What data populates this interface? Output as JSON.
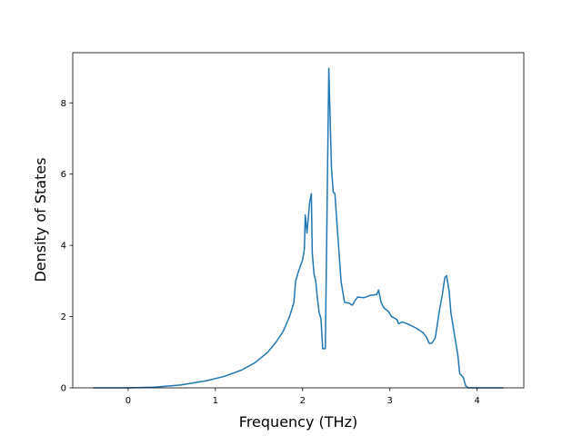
{
  "chart_data": {
    "type": "line",
    "xlabel": "Frequency (THz)",
    "ylabel": "Density of States",
    "color": "#1f77b4",
    "x": [
      -0.4,
      0,
      0.3,
      0.6,
      0.9,
      1.1,
      1.3,
      1.45,
      1.6,
      1.7,
      1.78,
      1.85,
      1.9,
      1.92,
      1.95,
      2.0,
      2.02,
      2.03,
      2.05,
      2.08,
      2.1,
      2.11,
      2.13,
      2.15,
      2.17,
      2.19,
      2.21,
      2.23,
      2.26,
      2.28,
      2.3,
      2.33,
      2.35,
      2.37,
      2.4,
      2.44,
      2.48,
      2.53,
      2.57,
      2.6,
      2.63,
      2.7,
      2.78,
      2.85,
      2.87,
      2.9,
      2.93,
      2.98,
      3.02,
      3.08,
      3.1,
      3.14,
      3.2,
      3.3,
      3.38,
      3.42,
      3.45,
      3.48,
      3.52,
      3.57,
      3.6,
      3.63,
      3.65,
      3.68,
      3.7,
      3.74,
      3.78,
      3.8,
      3.84,
      3.87,
      3.9,
      4.3
    ],
    "values": [
      0,
      0,
      0.02,
      0.08,
      0.2,
      0.32,
      0.5,
      0.7,
      1.0,
      1.3,
      1.6,
      2.0,
      2.4,
      3.0,
      3.25,
      3.6,
      3.9,
      4.85,
      4.35,
      5.2,
      5.45,
      3.8,
      3.2,
      3.0,
      2.5,
      2.1,
      1.95,
      1.1,
      1.1,
      5.0,
      8.97,
      6.2,
      5.5,
      5.45,
      4.4,
      3.0,
      2.4,
      2.38,
      2.32,
      2.45,
      2.55,
      2.53,
      2.6,
      2.62,
      2.75,
      2.4,
      2.25,
      2.15,
      2.0,
      1.92,
      1.8,
      1.85,
      1.8,
      1.68,
      1.55,
      1.42,
      1.25,
      1.25,
      1.4,
      2.2,
      2.6,
      3.1,
      3.15,
      2.7,
      2.1,
      1.5,
      0.9,
      0.4,
      0.3,
      0.05,
      0,
      0
    ],
    "xlim": [
      -0.635,
      4.535
    ],
    "ylim": [
      0,
      9.41
    ],
    "xticks": [
      0,
      1,
      2,
      3,
      4
    ],
    "yticks": [
      0,
      2,
      4,
      6,
      8
    ]
  }
}
